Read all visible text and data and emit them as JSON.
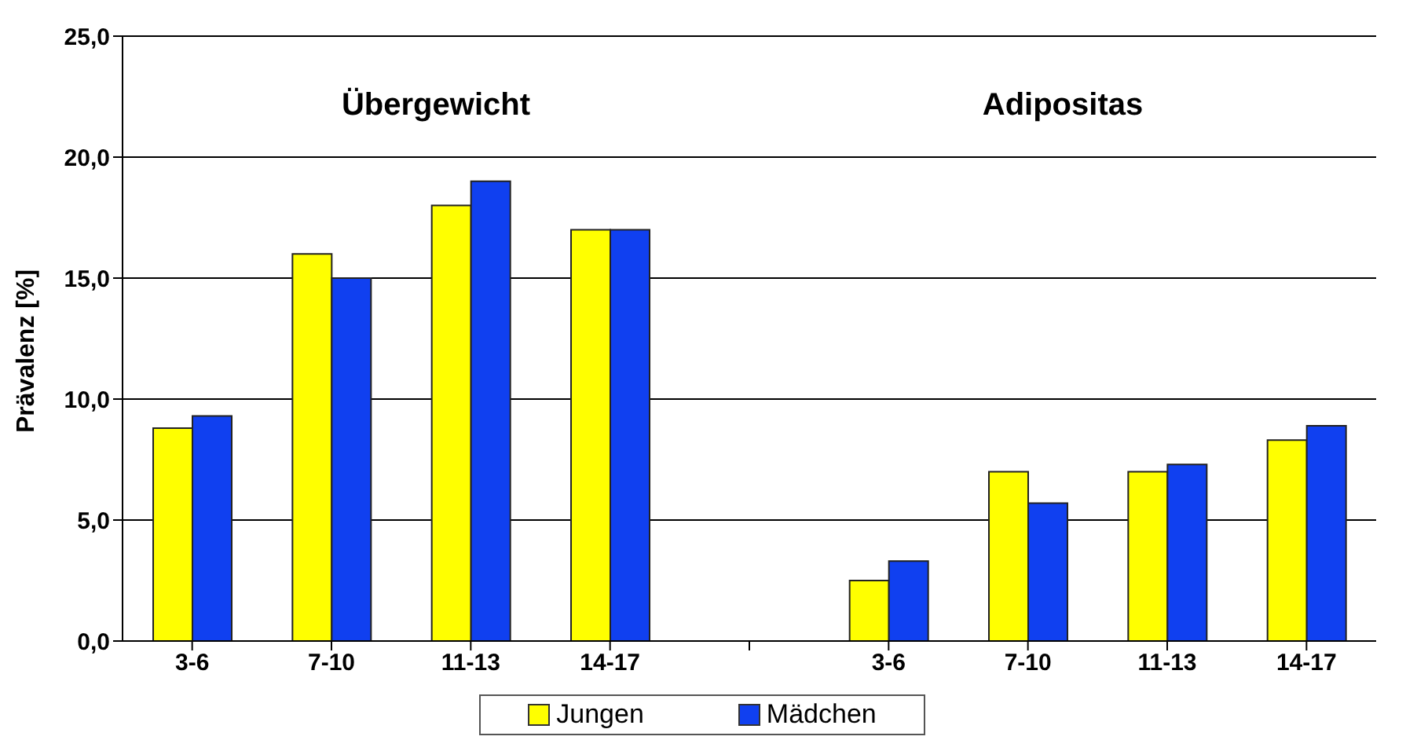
{
  "chart_data": {
    "type": "bar",
    "ylabel": "Prävalenz [%]",
    "categories": [
      "3-6",
      "7-10",
      "11-13",
      "14-17",
      null,
      "3-6",
      "7-10",
      "11-13",
      "14-17"
    ],
    "series": [
      {
        "name": "Jungen",
        "color": "#ffff00",
        "values": [
          8.8,
          16.0,
          18.0,
          17.0,
          null,
          2.5,
          7.0,
          7.0,
          8.3
        ]
      },
      {
        "name": "Mädchen",
        "color": "#1040f0",
        "values": [
          9.3,
          15.0,
          19.0,
          17.0,
          null,
          3.3,
          5.7,
          7.3,
          8.9
        ]
      }
    ],
    "ylim": [
      0,
      25
    ],
    "yticks": [
      {
        "value": 0,
        "label": "0,0"
      },
      {
        "value": 5,
        "label": "5,0"
      },
      {
        "value": 10,
        "label": "10,0"
      },
      {
        "value": 15,
        "label": "15,0"
      },
      {
        "value": 20,
        "label": "20,0"
      },
      {
        "value": 25,
        "label": "25,0"
      }
    ],
    "grid": "y",
    "legend": "bottom",
    "annotations": [
      "Übergewicht",
      "Adipositas"
    ]
  }
}
